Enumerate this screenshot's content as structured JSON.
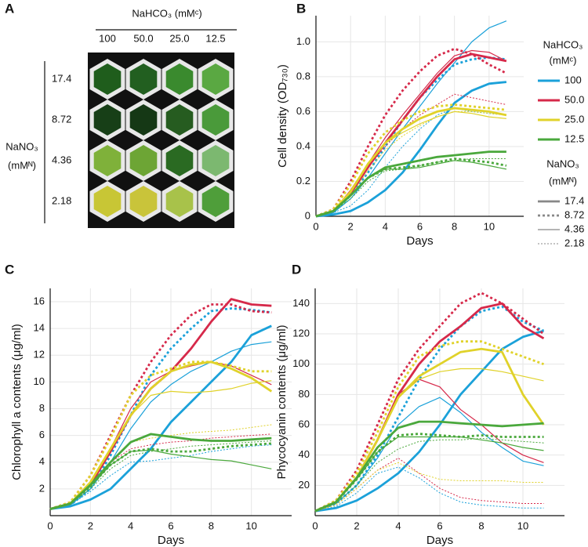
{
  "panel_a": {
    "letter": "A",
    "column_title": "NaHCO₃ (mMᶜ)",
    "columns": [
      "100",
      "50.0",
      "25.0",
      "12.5"
    ],
    "row_title": "NaNO₃",
    "row_unit": "(mMᴺ)",
    "rows": [
      "17.4",
      "8.72",
      "4.36",
      "2.18"
    ]
  },
  "legend": {
    "carbon_title": "NaHCO₃",
    "carbon_unit": "(mMᶜ)",
    "carbon": [
      {
        "label": "100",
        "color": "#1ba1d9"
      },
      {
        "label": "50.0",
        "color": "#d6294a"
      },
      {
        "label": "25.0",
        "color": "#e0d22a"
      },
      {
        "label": "12.5",
        "color": "#4aa83c"
      }
    ],
    "nitrogen_title": "NaNO₃",
    "nitrogen_unit": "(mMᴺ)",
    "nitrogen": [
      {
        "label": "17.4",
        "style": "thick"
      },
      {
        "label": "8.72",
        "style": "thick-dotted"
      },
      {
        "label": "4.36",
        "style": "thin"
      },
      {
        "label": "2.18",
        "style": "thin-dotted"
      }
    ]
  },
  "chart_data": [
    {
      "type": "line",
      "letter": "B",
      "xlabel": "Days",
      "ylabel": "Cell density (OD₇₃₀)",
      "x": [
        0,
        1,
        2,
        3,
        4,
        5,
        6,
        7,
        8,
        9,
        10,
        11
      ],
      "xlim": [
        0,
        12
      ],
      "xticks": [
        0,
        2,
        4,
        6,
        8,
        10
      ],
      "ylim": [
        0,
        1.15
      ],
      "yticks": [
        0,
        0.2,
        0.4,
        0.6,
        0.8,
        {
          "value": 1,
          "label": "1.0"
        }
      ],
      "grid": true,
      "series": [
        {
          "color": "#1ba1d9",
          "style": "thick",
          "values": [
            0,
            0.01,
            0.03,
            0.08,
            0.15,
            0.25,
            0.38,
            0.52,
            0.65,
            0.72,
            0.76,
            0.77
          ]
        },
        {
          "color": "#1ba1d9",
          "style": "thick-dotted",
          "values": [
            0,
            0.02,
            0.12,
            0.25,
            0.4,
            0.55,
            0.68,
            0.78,
            0.87,
            0.9,
            0.91,
            0.9
          ]
        },
        {
          "color": "#1ba1d9",
          "style": "thin",
          "values": [
            0,
            0.02,
            0.1,
            0.22,
            0.36,
            0.5,
            0.63,
            0.76,
            0.88,
            1.0,
            1.08,
            1.12
          ]
        },
        {
          "color": "#1ba1d9",
          "style": "thin-dotted",
          "values": [
            0,
            0.02,
            0.06,
            0.15,
            0.28,
            0.4,
            0.5,
            0.58,
            0.62,
            0.6,
            0.59,
            0.58
          ]
        },
        {
          "color": "#d6294a",
          "style": "thick",
          "values": [
            0,
            0.03,
            0.13,
            0.28,
            0.42,
            0.55,
            0.68,
            0.8,
            0.9,
            0.93,
            0.91,
            0.89
          ]
        },
        {
          "color": "#d6294a",
          "style": "thick-dotted",
          "values": [
            0,
            0.04,
            0.2,
            0.4,
            0.58,
            0.72,
            0.83,
            0.92,
            0.96,
            0.93,
            0.87,
            0.82
          ]
        },
        {
          "color": "#d6294a",
          "style": "thin",
          "values": [
            0,
            0.03,
            0.15,
            0.3,
            0.45,
            0.58,
            0.7,
            0.82,
            0.92,
            0.95,
            0.94,
            0.89
          ]
        },
        {
          "color": "#d6294a",
          "style": "thin-dotted",
          "values": [
            0,
            0.03,
            0.14,
            0.28,
            0.4,
            0.5,
            0.58,
            0.64,
            0.7,
            0.68,
            0.66,
            0.64
          ]
        },
        {
          "color": "#e0d22a",
          "style": "thick",
          "values": [
            0,
            0.03,
            0.14,
            0.3,
            0.42,
            0.5,
            0.56,
            0.6,
            0.62,
            0.61,
            0.6,
            0.58
          ]
        },
        {
          "color": "#e0d22a",
          "style": "thick-dotted",
          "values": [
            0,
            0.04,
            0.18,
            0.36,
            0.48,
            0.55,
            0.6,
            0.63,
            0.64,
            0.63,
            0.62,
            0.61
          ]
        },
        {
          "color": "#e0d22a",
          "style": "thin",
          "values": [
            0,
            0.03,
            0.14,
            0.3,
            0.42,
            0.48,
            0.53,
            0.57,
            0.6,
            0.59,
            0.57,
            0.56
          ]
        },
        {
          "color": "#e0d22a",
          "style": "thin-dotted",
          "values": [
            0,
            0.03,
            0.12,
            0.26,
            0.38,
            0.46,
            0.52,
            0.57,
            0.6,
            0.6,
            0.59,
            0.58
          ]
        },
        {
          "color": "#4aa83c",
          "style": "thick",
          "values": [
            0,
            0.03,
            0.12,
            0.22,
            0.28,
            0.3,
            0.32,
            0.34,
            0.35,
            0.36,
            0.37,
            0.37
          ]
        },
        {
          "color": "#4aa83c",
          "style": "thick-dotted",
          "values": [
            0,
            0.03,
            0.12,
            0.22,
            0.27,
            0.28,
            0.29,
            0.31,
            0.33,
            0.32,
            0.31,
            0.29
          ]
        },
        {
          "color": "#4aa83c",
          "style": "thin",
          "values": [
            0,
            0.03,
            0.12,
            0.22,
            0.27,
            0.27,
            0.28,
            0.3,
            0.32,
            0.31,
            0.29,
            0.27
          ]
        },
        {
          "color": "#4aa83c",
          "style": "thin-dotted",
          "values": [
            0,
            0.03,
            0.1,
            0.2,
            0.26,
            0.27,
            0.29,
            0.31,
            0.32,
            0.33,
            0.33,
            0.33
          ]
        }
      ]
    },
    {
      "type": "line",
      "letter": "C",
      "xlabel": "Days",
      "ylabel": "Chlorophyll a contents (μg/ml)",
      "x": [
        0,
        1,
        2,
        3,
        4,
        5,
        6,
        7,
        8,
        9,
        10,
        11
      ],
      "xlim": [
        0,
        12
      ],
      "xticks": [
        0,
        2,
        4,
        6,
        8,
        10
      ],
      "ylim": [
        0,
        17
      ],
      "yticks": [
        2,
        4,
        6,
        8,
        10,
        12,
        14,
        16
      ],
      "grid": true,
      "series": [
        {
          "color": "#1ba1d9",
          "style": "thick",
          "values": [
            0.5,
            0.7,
            1.2,
            2,
            3.5,
            5,
            7,
            8.5,
            10,
            11.5,
            13.5,
            14.2
          ]
        },
        {
          "color": "#1ba1d9",
          "style": "thick-dotted",
          "values": [
            0.5,
            0.8,
            2,
            4.5,
            7.5,
            10.5,
            12.5,
            14,
            15.3,
            15.5,
            15.4,
            15.2
          ]
        },
        {
          "color": "#1ba1d9",
          "style": "thin",
          "values": [
            0.5,
            0.8,
            2,
            4,
            6.5,
            8.5,
            9.8,
            10.8,
            11.5,
            12.3,
            12.8,
            13
          ]
        },
        {
          "color": "#1ba1d9",
          "style": "thin-dotted",
          "values": [
            0.5,
            0.8,
            1.8,
            3,
            4,
            4.1,
            4.3,
            4.5,
            4.8,
            5,
            5.2,
            5.3
          ]
        },
        {
          "color": "#d6294a",
          "style": "thick",
          "values": [
            0.5,
            0.9,
            2.3,
            4.8,
            7.5,
            9.5,
            10.8,
            12.5,
            14.5,
            16.2,
            15.8,
            15.7
          ]
        },
        {
          "color": "#d6294a",
          "style": "thick-dotted",
          "values": [
            0.5,
            1,
            3,
            6,
            9,
            11.5,
            13.5,
            15,
            15.8,
            15.8,
            15.3,
            15.2
          ]
        },
        {
          "color": "#d6294a",
          "style": "thin",
          "values": [
            0.5,
            0.9,
            2.5,
            5,
            8,
            10,
            10.8,
            11.2,
            11.5,
            11.2,
            10.5,
            9.8
          ]
        },
        {
          "color": "#d6294a",
          "style": "thin-dotted",
          "values": [
            0.5,
            0.9,
            2.2,
            4,
            5,
            5.3,
            5.5,
            5.6,
            5.8,
            5.9,
            6,
            6.1
          ]
        },
        {
          "color": "#e0d22a",
          "style": "thick",
          "values": [
            0.5,
            0.9,
            2.5,
            5,
            7.5,
            9.5,
            10.8,
            11.3,
            11.5,
            11,
            10.3,
            9.3
          ]
        },
        {
          "color": "#e0d22a",
          "style": "thick-dotted",
          "values": [
            0.5,
            1,
            3,
            5.8,
            9,
            10.5,
            11,
            11.5,
            11.5,
            11.2,
            10.8,
            10.8
          ]
        },
        {
          "color": "#e0d22a",
          "style": "thin",
          "values": [
            0.5,
            0.9,
            2.5,
            5,
            7.5,
            9,
            9.3,
            9.2,
            9.3,
            9.5,
            9.9,
            10.1
          ]
        },
        {
          "color": "#e0d22a",
          "style": "thin-dotted",
          "values": [
            0.5,
            0.9,
            2.2,
            4,
            5.5,
            5.8,
            6,
            6.2,
            6.3,
            6.4,
            6.6,
            6.8
          ]
        },
        {
          "color": "#4aa83c",
          "style": "thick",
          "values": [
            0.5,
            0.9,
            2.3,
            4,
            5.5,
            6.1,
            5.9,
            5.7,
            5.6,
            5.6,
            5.7,
            5.8
          ]
        },
        {
          "color": "#4aa83c",
          "style": "thick-dotted",
          "values": [
            0.5,
            0.9,
            2.2,
            3.8,
            4.8,
            5,
            4.8,
            4.8,
            5,
            5.2,
            5.3,
            5.4
          ]
        },
        {
          "color": "#4aa83c",
          "style": "thin",
          "values": [
            0.5,
            0.9,
            2.2,
            3.8,
            4.8,
            4.9,
            4.6,
            4.4,
            4.2,
            4.1,
            3.8,
            3.5
          ]
        },
        {
          "color": "#4aa83c",
          "style": "thin-dotted",
          "values": [
            0.5,
            0.9,
            2,
            3.5,
            4.5,
            4.8,
            5,
            5.2,
            5.3,
            5.4,
            5.5,
            5.6
          ]
        }
      ]
    },
    {
      "type": "line",
      "letter": "D",
      "xlabel": "Days",
      "ylabel": "Phycocyanin contents (μg/ml)",
      "x": [
        0,
        1,
        2,
        3,
        4,
        5,
        6,
        7,
        8,
        9,
        10,
        11
      ],
      "xlim": [
        0,
        12
      ],
      "xticks": [
        0,
        2,
        4,
        6,
        8,
        10
      ],
      "ylim": [
        0,
        150
      ],
      "yticks": [
        20,
        40,
        60,
        80,
        100,
        120,
        140
      ],
      "grid": true,
      "series": [
        {
          "color": "#1ba1d9",
          "style": "thick",
          "values": [
            3,
            5,
            10,
            18,
            28,
            42,
            60,
            80,
            95,
            110,
            118,
            122
          ]
        },
        {
          "color": "#1ba1d9",
          "style": "thick-dotted",
          "values": [
            3,
            8,
            20,
            40,
            65,
            90,
            110,
            125,
            135,
            138,
            128,
            122
          ]
        },
        {
          "color": "#1ba1d9",
          "style": "thin",
          "values": [
            3,
            8,
            20,
            38,
            60,
            72,
            78,
            68,
            55,
            45,
            36,
            33
          ]
        },
        {
          "color": "#1ba1d9",
          "style": "thin-dotted",
          "values": [
            3,
            6,
            15,
            28,
            32,
            25,
            15,
            9,
            7,
            6,
            5,
            5
          ]
        },
        {
          "color": "#d6294a",
          "style": "thick",
          "values": [
            3,
            9,
            25,
            50,
            80,
            100,
            115,
            125,
            137,
            140,
            125,
            117
          ]
        },
        {
          "color": "#d6294a",
          "style": "thick-dotted",
          "values": [
            3,
            10,
            30,
            60,
            90,
            110,
            125,
            140,
            147,
            140,
            130,
            120
          ]
        },
        {
          "color": "#d6294a",
          "style": "thin",
          "values": [
            3,
            9,
            25,
            50,
            80,
            90,
            85,
            70,
            60,
            48,
            40,
            35
          ]
        },
        {
          "color": "#d6294a",
          "style": "thin-dotted",
          "values": [
            3,
            7,
            18,
            30,
            38,
            28,
            18,
            12,
            10,
            9,
            8,
            8
          ]
        },
        {
          "color": "#e0d22a",
          "style": "thick",
          "values": [
            3,
            9,
            25,
            50,
            78,
            92,
            100,
            108,
            110,
            108,
            80,
            60
          ]
        },
        {
          "color": "#e0d22a",
          "style": "thick-dotted",
          "values": [
            3,
            10,
            28,
            55,
            85,
            105,
            112,
            115,
            115,
            110,
            105,
            100
          ]
        },
        {
          "color": "#e0d22a",
          "style": "thin",
          "values": [
            3,
            9,
            25,
            50,
            78,
            90,
            95,
            97,
            97,
            95,
            92,
            89
          ]
        },
        {
          "color": "#e0d22a",
          "style": "thin-dotted",
          "values": [
            3,
            7,
            18,
            30,
            35,
            28,
            24,
            23,
            23,
            23,
            22,
            22
          ]
        },
        {
          "color": "#4aa83c",
          "style": "thick",
          "values": [
            3,
            9,
            25,
            45,
            58,
            62,
            62,
            61,
            60,
            59,
            60,
            61
          ]
        },
        {
          "color": "#4aa83c",
          "style": "thick-dotted",
          "values": [
            3,
            9,
            24,
            42,
            53,
            54,
            53,
            52,
            53,
            52,
            52,
            52
          ]
        },
        {
          "color": "#4aa83c",
          "style": "thin",
          "values": [
            3,
            9,
            24,
            42,
            52,
            52,
            52,
            52,
            50,
            48,
            45,
            43
          ]
        },
        {
          "color": "#4aa83c",
          "style": "thin-dotted",
          "values": [
            3,
            8,
            20,
            35,
            44,
            49,
            50,
            50,
            51,
            50,
            49,
            48
          ]
        }
      ]
    }
  ]
}
